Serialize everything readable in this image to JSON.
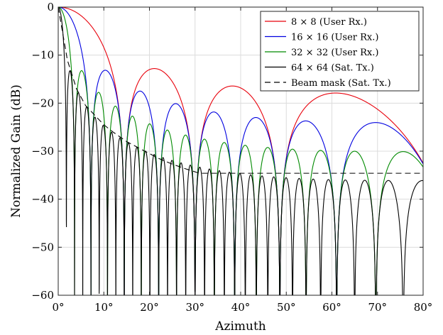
{
  "chart_data": {
    "type": "line",
    "xlabel": "Azimuth",
    "ylabel": "Normalized Gain (dB)",
    "xlim": [
      0,
      80
    ],
    "ylim": [
      -60,
      0
    ],
    "xticks": [
      0,
      10,
      20,
      30,
      40,
      50,
      60,
      70,
      80
    ],
    "xtick_labels": [
      "0°",
      "10°",
      "20°",
      "30°",
      "40°",
      "50°",
      "60°",
      "70°",
      "80°"
    ],
    "yticks": [
      0,
      -10,
      -20,
      -30,
      -40,
      -50,
      -60
    ],
    "ytick_labels": [
      "0",
      "−10",
      "−20",
      "−30",
      "−40",
      "−50",
      "−60"
    ],
    "grid": true,
    "legend_position": "top-right",
    "series": [
      {
        "name": "8 × 8 (User Rx.)",
        "color": "#e8000b",
        "dash": "solid",
        "N": 8
      },
      {
        "name": "16 × 16 (User Rx.)",
        "color": "#0000e0",
        "dash": "solid",
        "N": 16
      },
      {
        "name": "32 × 32 (User Rx.)",
        "color": "#008a00",
        "dash": "solid",
        "N": 32
      },
      {
        "name": "64 × 64 (Sat. Tx.)",
        "color": "#000000",
        "dash": "solid",
        "N": 64
      },
      {
        "name": "Beam mask (Sat. Tx.)",
        "color": "#000000",
        "dash": "dashed",
        "x": [
          0,
          2,
          4,
          6,
          8,
          10,
          12,
          15,
          18,
          20,
          22,
          25,
          28,
          30,
          31,
          35,
          40,
          50,
          60,
          70,
          80
        ],
        "y": [
          0,
          -11,
          -17,
          -20.5,
          -22.5,
          -24.5,
          -26,
          -28,
          -29.5,
          -30.5,
          -31.5,
          -32.7,
          -33.7,
          -34.3,
          -34.6,
          -34.6,
          -34.6,
          -34.6,
          -34.6,
          -34.6,
          -34.6
        ]
      }
    ]
  }
}
